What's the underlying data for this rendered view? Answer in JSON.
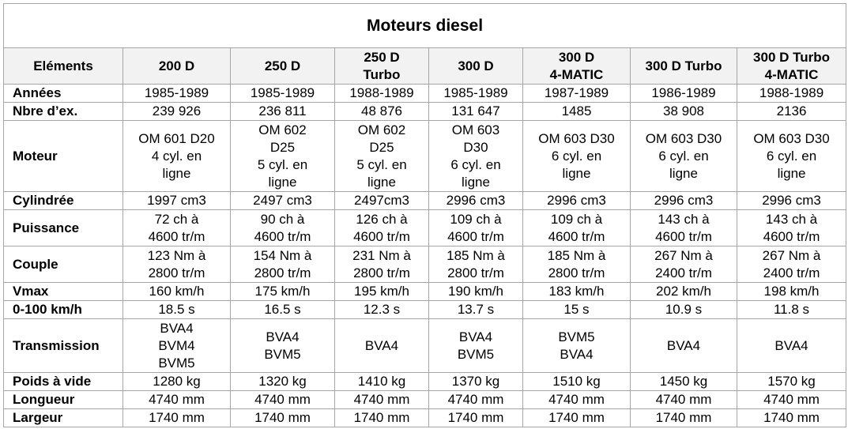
{
  "table": {
    "title": "Moteurs diesel",
    "header": [
      "Eléments",
      "200 D",
      "250 D",
      "250 D\nTurbo",
      "300 D",
      "300 D\n4-MATIC",
      "300 D Turbo",
      "300 D Turbo\n4-MATIC"
    ],
    "rows": [
      [
        "Années",
        "1985-1989",
        "1985-1989",
        "1988-1989",
        "1985-1989",
        "1987-1989",
        "1986-1989",
        "1988-1989"
      ],
      [
        "Nbre d’ex.",
        "239 926",
        "236 811",
        "48 876",
        "131 647",
        "1485",
        "38 908",
        "2136"
      ],
      [
        "Moteur",
        "OM 601 D20\n4 cyl. en\nligne",
        "OM 602\nD25\n5 cyl. en\nligne",
        "OM 602\nD25\n5 cyl. en\nligne",
        "OM 603\nD30\n6 cyl. en\nligne",
        "OM 603 D30\n6 cyl. en\nligne",
        "OM 603 D30\n6 cyl. en\nligne",
        "OM 603 D30\n6 cyl. en\nligne"
      ],
      [
        "Cylindrée",
        "1997 cm3",
        "2497 cm3",
        "2497cm3",
        "2996 cm3",
        "2996 cm3",
        "2996 cm3",
        "2996 cm3"
      ],
      [
        "Puissance",
        "72 ch à\n4600 tr/m",
        "90 ch à\n4600 tr/m",
        "126 ch à\n4600 tr/m",
        "109 ch à\n4600 tr/m",
        "109 ch à\n4600 tr/m",
        "143 ch à\n4600 tr/m",
        "143 ch à\n4600 tr/m"
      ],
      [
        "Couple",
        "123 Nm à\n2800 tr/m",
        "154 Nm à\n2800 tr/m",
        "231 Nm à\n2800 tr/m",
        "185 Nm à\n2800 tr/m",
        "185 Nm à\n2800 tr/m",
        "267 Nm à\n2400 tr/m",
        "267 Nm à\n2400 tr/m"
      ],
      [
        "Vmax",
        "160 km/h",
        "175 km/h",
        "195 km/h",
        "190 km/h",
        "183 km/h",
        "202 km/h",
        "198 km/h"
      ],
      [
        "0-100 km/h",
        "18.5 s",
        "16.5 s",
        "12.3 s",
        "13.7 s",
        "15 s",
        "10.9 s",
        "11.8 s"
      ],
      [
        "Transmission",
        "BVA4\nBVM4\nBVM5",
        "BVA4\nBVM5",
        "BVA4",
        "BVA4\nBVM5",
        "BVM5\nBVA4",
        "BVA4",
        "BVA4"
      ],
      [
        "Poids à vide",
        "1280 kg",
        "1320 kg",
        "1410 kg",
        "1370 kg",
        "1510 kg",
        "1450 kg",
        "1570 kg"
      ],
      [
        "Longueur",
        "4740 mm",
        "4740 mm",
        "4740 mm",
        "4740 mm",
        "4740 mm",
        "4740 mm",
        "4740 mm"
      ],
      [
        "Largeur",
        "1740 mm",
        "1740 mm",
        "1740 mm",
        "1740 mm",
        "1740 mm",
        "1740 mm",
        "1740 mm"
      ]
    ]
  }
}
